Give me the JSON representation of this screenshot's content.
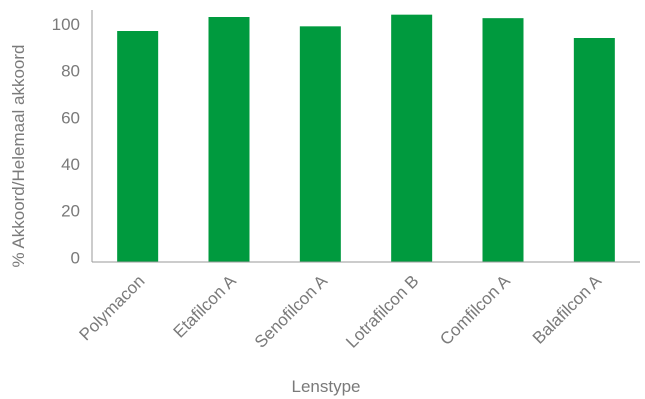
{
  "chart_data": {
    "type": "bar",
    "categories": [
      "Polymacon",
      "Etafilcon A",
      "Senofilcon A",
      "Lotrafilcon B",
      "Comfilcon A",
      "Balafilcon A"
    ],
    "values": [
      97,
      103,
      99,
      104,
      102.5,
      94
    ],
    "xlabel": "Lenstype",
    "ylabel": "% Akkoord/Helemaal akkoord",
    "yticks": [
      0,
      20,
      40,
      60,
      80,
      100
    ],
    "ylim": [
      -2,
      106
    ],
    "bar_color": "#009a3e",
    "axis_color": "#9a9a9a",
    "text_color": "#7a7a7a",
    "grid": false,
    "legend": "none"
  }
}
